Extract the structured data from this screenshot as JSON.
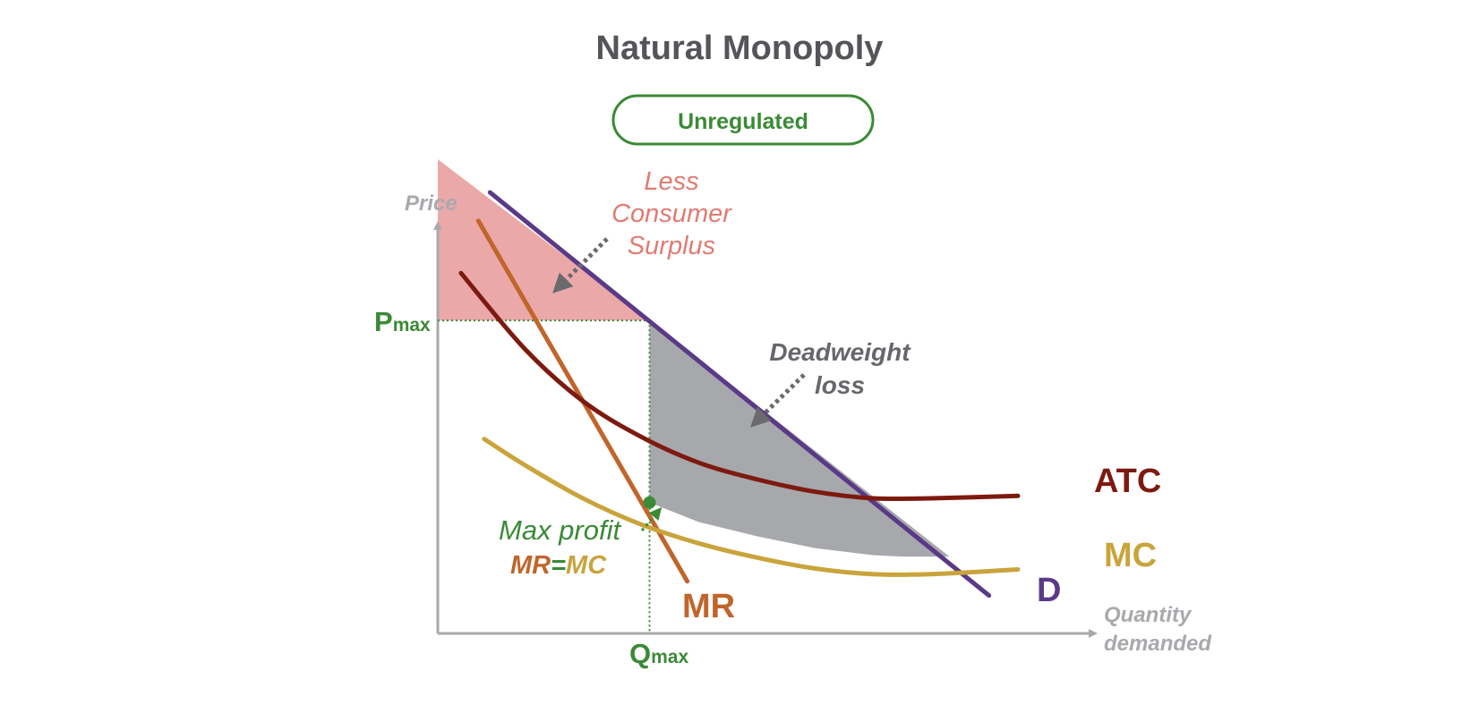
{
  "chart_data": {
    "type": "line",
    "title": "Natural Monopoly",
    "badge": "Unregulated",
    "xlabel": [
      "Quantity",
      "demanded"
    ],
    "ylabel": "Price",
    "x_tick": {
      "main": "Q",
      "sub": "max"
    },
    "y_tick": {
      "main": "P",
      "sub": "max"
    },
    "series": [
      {
        "name": "D",
        "color": "#5a3a87",
        "points": [
          [
            0.9,
            9.3
          ],
          [
            9.5,
            0.8
          ]
        ]
      },
      {
        "name": "MR",
        "color": "#c0652b",
        "points": [
          [
            0.7,
            8.7
          ],
          [
            4.3,
            1.1
          ]
        ]
      },
      {
        "name": "ATC",
        "color": "#7d1a10",
        "points": [
          [
            0.4,
            7.6
          ],
          [
            1.5,
            6.0
          ],
          [
            2.5,
            4.9
          ],
          [
            3.5,
            4.15
          ],
          [
            4.5,
            3.6
          ],
          [
            5.5,
            3.25
          ],
          [
            6.5,
            2.99
          ],
          [
            7.5,
            2.85
          ],
          [
            8.5,
            2.85
          ],
          [
            10.0,
            2.9
          ]
        ]
      },
      {
        "name": "MC",
        "color": "#c9a43c",
        "points": [
          [
            0.8,
            4.1
          ],
          [
            1.5,
            3.55
          ],
          [
            2.5,
            2.85
          ],
          [
            3.5,
            2.3
          ],
          [
            4.5,
            1.9
          ],
          [
            5.5,
            1.6
          ],
          [
            6.5,
            1.37
          ],
          [
            7.5,
            1.25
          ],
          [
            8.5,
            1.25
          ],
          [
            10.0,
            1.35
          ]
        ]
      }
    ],
    "regions": [
      {
        "name": "Less Consumer Surplus",
        "color": "#eaa9a8",
        "points": [
          [
            0,
            10.0
          ],
          [
            3.65,
            6.6
          ],
          [
            0,
            6.6
          ]
        ]
      },
      {
        "name": "Deadweight loss",
        "color": "#a7a8ac",
        "points": [
          [
            3.65,
            6.6
          ],
          [
            3.65,
            2.76
          ],
          [
            4.5,
            2.35
          ],
          [
            5.5,
            2.05
          ],
          [
            6.5,
            1.8
          ],
          [
            7.5,
            1.65
          ],
          [
            8.0,
            1.62
          ],
          [
            8.82,
            1.62
          ]
        ]
      }
    ],
    "equilibrium": {
      "q": 3.65,
      "p_mrmc": 2.76,
      "p_max": 6.6,
      "color": "#3a8a36"
    },
    "annotations": {
      "consumer_surplus": [
        "Less",
        "Consumer",
        "Surplus"
      ],
      "deadweight": [
        "Deadweight",
        "loss"
      ],
      "max_profit": "Max profit",
      "mr_eq_mc": {
        "left": "MR",
        "eq": "=",
        "right": "MC"
      }
    },
    "xlim": [
      0,
      11
    ],
    "ylim": [
      0,
      10
    ],
    "grid": false,
    "legend": "none"
  }
}
